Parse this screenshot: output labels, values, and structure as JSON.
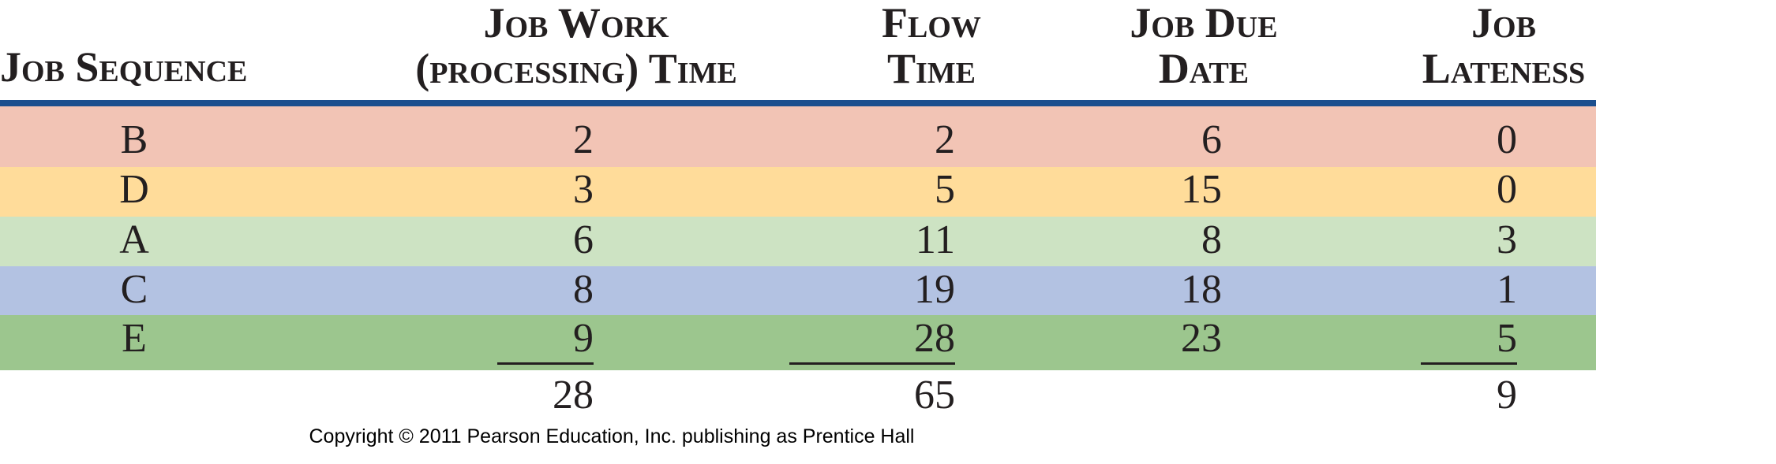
{
  "headers": {
    "sequence": [
      "Job Sequence"
    ],
    "work": [
      "Job Work",
      "(processing) Time"
    ],
    "flow": [
      "Flow",
      "Time"
    ],
    "due": [
      "Job Due",
      "Date"
    ],
    "lateness": [
      "Job",
      "Lateness"
    ]
  },
  "colors": {
    "rule": "#1c4f8e",
    "rows": [
      "#f2c4b5",
      "#ffdc9a",
      "#cde3c3",
      "#b3c2e2",
      "#9cc68e"
    ]
  },
  "rows": [
    {
      "job": "B",
      "work": "2",
      "flow": "2",
      "due": "6",
      "lateness": "0"
    },
    {
      "job": "D",
      "work": "3",
      "flow": "5",
      "due": "15",
      "lateness": "0"
    },
    {
      "job": "A",
      "work": "6",
      "flow": "11",
      "due": "8",
      "lateness": "3"
    },
    {
      "job": "C",
      "work": "8",
      "flow": "19",
      "due": "18",
      "lateness": "1"
    },
    {
      "job": "E",
      "work": "9",
      "flow": "28",
      "due": "23",
      "lateness": "5"
    }
  ],
  "totals": {
    "work": "28",
    "flow": "65",
    "lateness": "9"
  },
  "copyright": "Copyright © 2011 Pearson Education, Inc. publishing as Prentice Hall"
}
